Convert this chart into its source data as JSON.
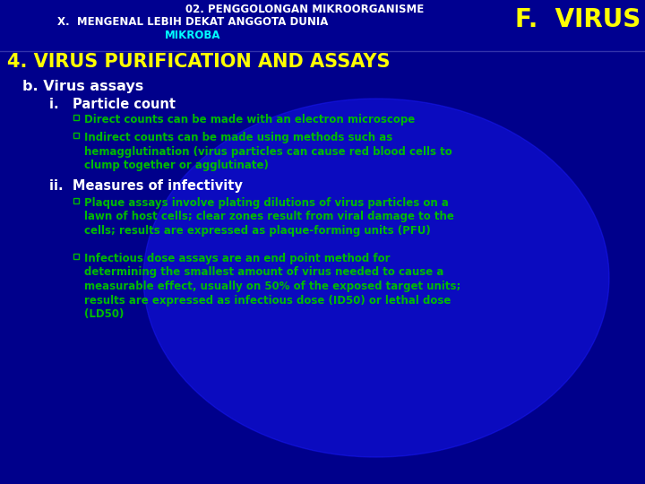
{
  "bg_color": "#00008B",
  "header_line1": "02. PENGGOLONGAN MIKROORGANISME",
  "header_line2": "X.  MENGENAL LEBIH DEKAT ANGGOTA DUNIA",
  "header_line3": "MIKROBA",
  "header_right": "F.  VIRUS",
  "header_text_color": "#FFFFFF",
  "header_right_color": "#FFFF00",
  "header_mikroba_color": "#00FFFF",
  "section_title": "4. VIRUS PURIFICATION AND ASSAYS",
  "section_title_color": "#FFFF00",
  "sub_title": "b. Virus assays",
  "sub_title_color": "#FFFFFF",
  "subsub_i": "i.   Particle count",
  "subsub_ii": "ii.  Measures of infectivity",
  "subsub_color": "#FFFFFF",
  "bullet_color": "#00BB00",
  "bullet1": "Direct counts can be made with an electron microscope",
  "bullet2": "Indirect counts can be made using methods such as\nhemagglutination (virus particles can cause red blood cells to\nclump together or agglutinate)",
  "bullet3": "Plaque assays involve plating dilutions of virus particles on a\nlawn of host cells; clear zones result from viral damage to the\ncells; results are expressed as plaque-forming units (PFU)",
  "bullet4": "Infectious dose assays are an end point method for\ndetermining the smallest amount of virus needed to cause a\nmeasurable effect, usually on 50% of the exposed target units;\nresults are expressed as infectious dose (ID50) or lethal dose\n(LD50)",
  "glow_color": "#1a1aff",
  "separator_color": "#3333AA"
}
